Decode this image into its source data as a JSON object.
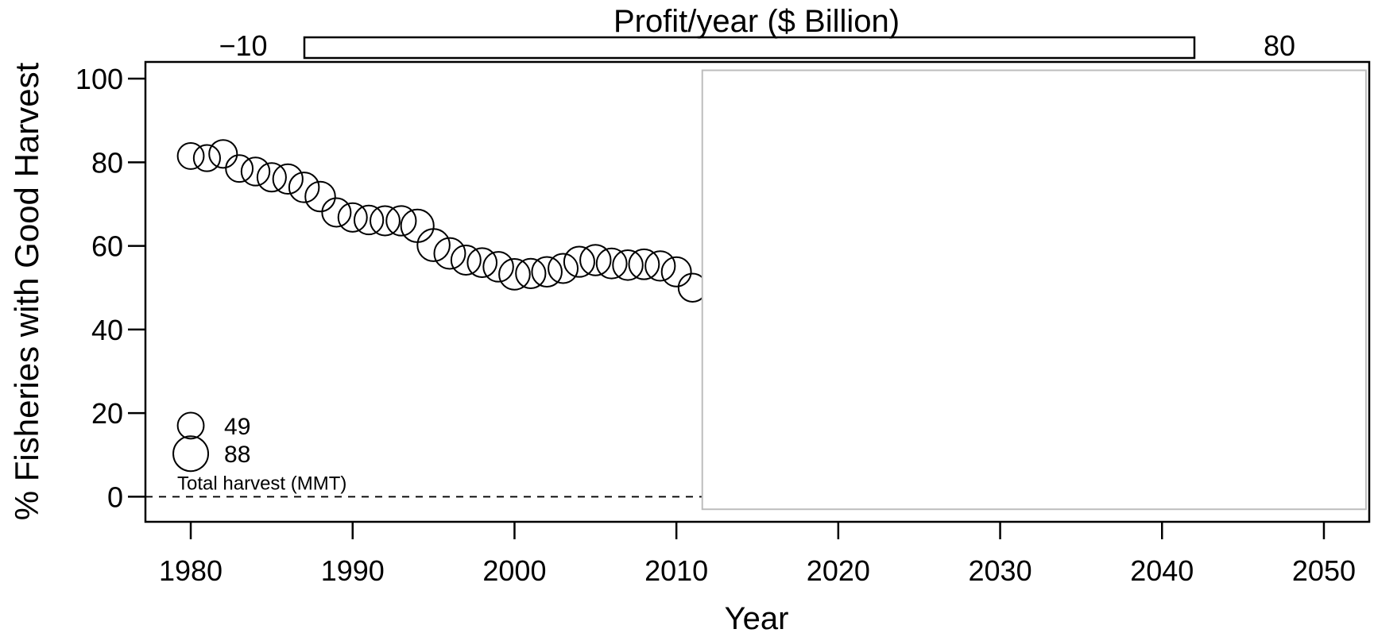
{
  "chart_data": {
    "type": "scatter",
    "title": "",
    "xlabel": "Year",
    "ylabel": "% Fisheries with Good Harvest",
    "xlim": [
      1977.2,
      2052.8
    ],
    "ylim": [
      -6,
      104
    ],
    "x_ticks": [
      1980,
      1990,
      2000,
      2010,
      2020,
      2030,
      2040,
      2050
    ],
    "y_ticks": [
      0,
      20,
      40,
      60,
      80,
      100
    ],
    "grid": false,
    "reference_line": {
      "y": 0,
      "style": "dashed",
      "x_range": [
        1977.2,
        2011.6
      ]
    },
    "color_bar": {
      "title": "Profit/year ($ Billion)",
      "min_label": "−10",
      "max_label": "80",
      "min": -10,
      "max": 80
    },
    "size_legend": {
      "title": "Total harvest (MMT)",
      "entries": [
        {
          "label": "49",
          "value": 49
        },
        {
          "label": "88",
          "value": 88
        }
      ],
      "placement": "bottom-left"
    },
    "overlay_box": {
      "x_range": [
        2011.6,
        2052.6
      ],
      "y_range": [
        -3,
        102
      ],
      "color": "#bdbdbd"
    },
    "points": [
      {
        "x": 1980,
        "y": 81.5,
        "size": 49
      },
      {
        "x": 1981,
        "y": 81.0,
        "size": 50
      },
      {
        "x": 1982,
        "y": 82.0,
        "size": 56
      },
      {
        "x": 1983,
        "y": 78.5,
        "size": 52
      },
      {
        "x": 1984,
        "y": 77.8,
        "size": 57
      },
      {
        "x": 1985,
        "y": 76.4,
        "size": 59
      },
      {
        "x": 1986,
        "y": 76.0,
        "size": 63
      },
      {
        "x": 1987,
        "y": 74.0,
        "size": 64
      },
      {
        "x": 1988,
        "y": 71.8,
        "size": 64
      },
      {
        "x": 1989,
        "y": 68.0,
        "size": 59
      },
      {
        "x": 1990,
        "y": 66.8,
        "size": 59
      },
      {
        "x": 1991,
        "y": 66.2,
        "size": 60
      },
      {
        "x": 1992,
        "y": 66.0,
        "size": 62
      },
      {
        "x": 1993,
        "y": 66.0,
        "size": 63
      },
      {
        "x": 1994,
        "y": 64.8,
        "size": 77
      },
      {
        "x": 1995,
        "y": 60.2,
        "size": 75
      },
      {
        "x": 1996,
        "y": 58.2,
        "size": 69
      },
      {
        "x": 1997,
        "y": 56.6,
        "size": 62
      },
      {
        "x": 1998,
        "y": 56.0,
        "size": 61
      },
      {
        "x": 1999,
        "y": 55.0,
        "size": 64
      },
      {
        "x": 2000,
        "y": 53.2,
        "size": 68
      },
      {
        "x": 2001,
        "y": 53.4,
        "size": 63
      },
      {
        "x": 2002,
        "y": 53.8,
        "size": 64
      },
      {
        "x": 2003,
        "y": 54.6,
        "size": 62
      },
      {
        "x": 2004,
        "y": 56.2,
        "size": 66
      },
      {
        "x": 2005,
        "y": 56.6,
        "size": 67
      },
      {
        "x": 2006,
        "y": 55.8,
        "size": 65
      },
      {
        "x": 2007,
        "y": 55.4,
        "size": 64
      },
      {
        "x": 2008,
        "y": 55.6,
        "size": 65
      },
      {
        "x": 2009,
        "y": 55.2,
        "size": 63
      },
      {
        "x": 2010,
        "y": 53.8,
        "size": 62
      },
      {
        "x": 2011,
        "y": 50.0,
        "size": 57
      }
    ]
  }
}
